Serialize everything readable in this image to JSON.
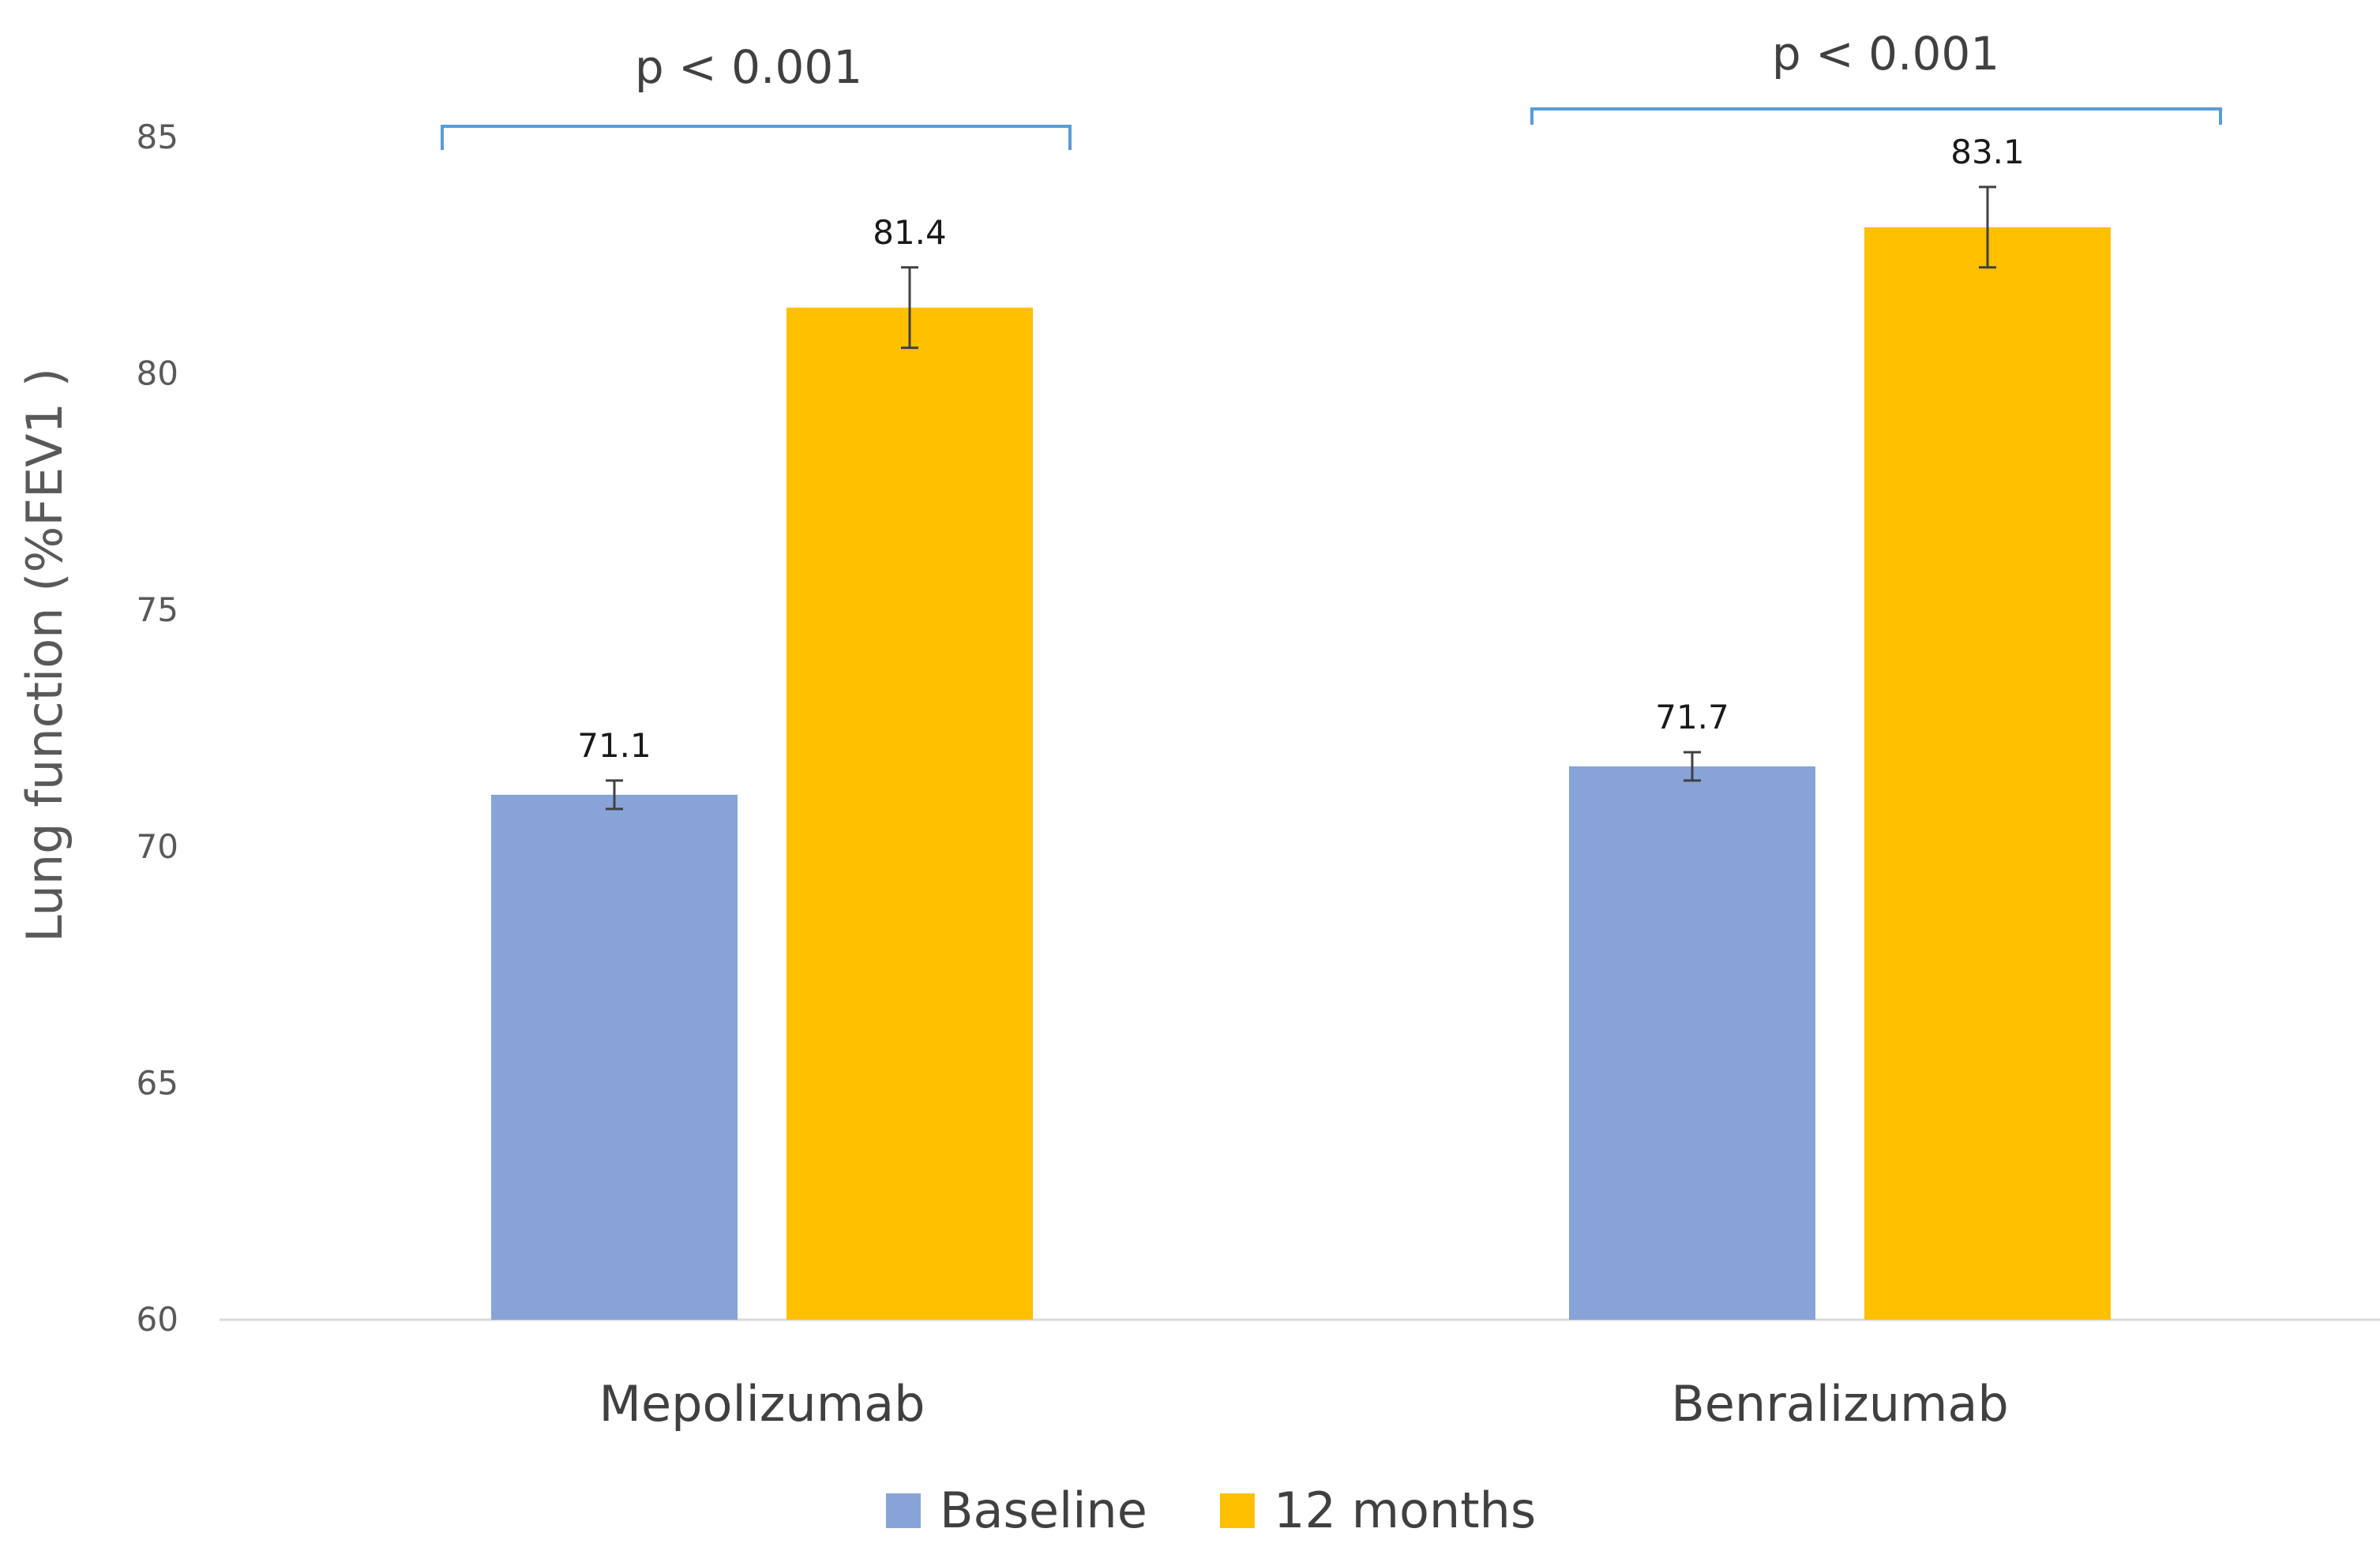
{
  "chart_data": {
    "type": "bar",
    "categories": [
      "Mepolizumab",
      "Benralizumab"
    ],
    "series": [
      {
        "name": "Baseline",
        "color": "#87A3D8",
        "values": [
          71.1,
          71.7
        ],
        "error": [
          0.3,
          0.3
        ],
        "labels": [
          "71.1",
          "71.7"
        ]
      },
      {
        "name": "12 months",
        "color": "#FFC000",
        "values": [
          81.4,
          83.1
        ],
        "error": [
          0.85,
          0.85
        ],
        "labels": [
          "81.4",
          "83.1"
        ]
      }
    ],
    "ylabel": "Lung function (%FEV1 )",
    "xlabel": "",
    "ylim": [
      60,
      85
    ],
    "yticks": [
      "60",
      "65",
      "70",
      "75",
      "80",
      "85"
    ],
    "grid": false,
    "legend_position": "bottom",
    "annotations": [
      {
        "text": "p < 0.001",
        "category": "Mepolizumab",
        "bracket_color": "#5B9BD5"
      },
      {
        "text": "p < 0.001",
        "category": "Benralizumab",
        "bracket_color": "#5B9BD5"
      }
    ],
    "axis_color": "#D9D9D9",
    "error_bar_color": "#404040"
  }
}
